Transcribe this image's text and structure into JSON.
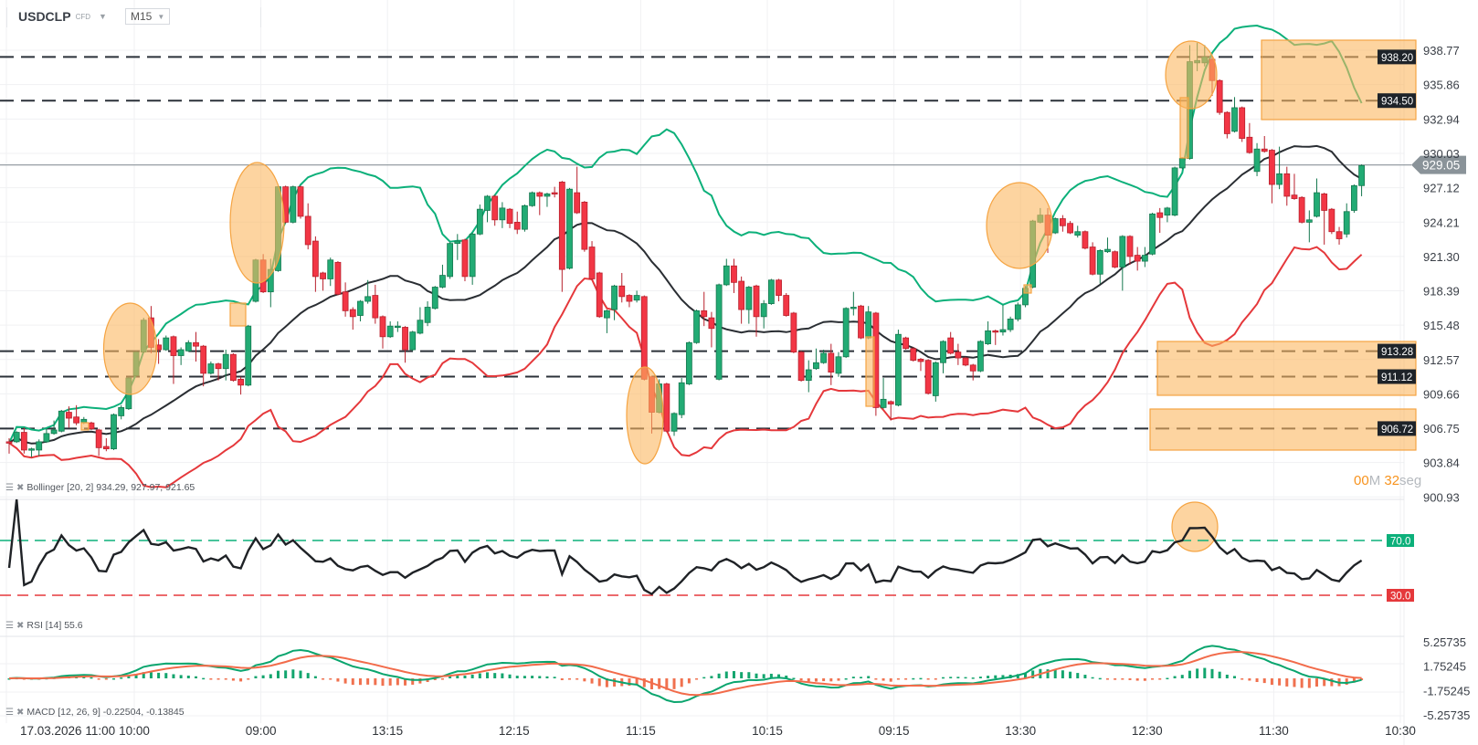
{
  "header": {
    "symbol": "USDCLP",
    "instrument_type": "CFD",
    "timeframe": "M15"
  },
  "countdown": {
    "minutes": "00",
    "minutes_unit": "M",
    "seconds": "32",
    "seconds_unit": "seg"
  },
  "indicators": {
    "bollinger": "Bollinger [20, 2] 934.29, 927.97, 921.65",
    "rsi": "RSI [14] 55.6",
    "macd": "MACD [12, 26, 9] -0.22504, -0.13845"
  },
  "colors": {
    "bull": "#22ab74",
    "bear": "#f23645",
    "bb_upper": "#0cb07a",
    "bb_middle": "#2a2e33",
    "bb_lower": "#e5383b",
    "rsi_line": "#1f2226",
    "macd_line": "#0aa56e",
    "signal_line": "#f26b4a",
    "highlight": "#fcb860",
    "level_line": "#2b3139",
    "last_price": "#8a9399"
  },
  "chart_data": [
    {
      "type": "candlestick",
      "symbol": "USDCLP",
      "timeframe": "M15",
      "price_axis": {
        "ticks": [
          "938.77",
          "935.86",
          "932.94",
          "930.03",
          "927.12",
          "924.21",
          "921.30",
          "918.39",
          "915.48",
          "912.57",
          "909.66",
          "906.75",
          "903.84",
          "900.93"
        ],
        "range": [
          900.93,
          938.77
        ]
      },
      "x_tick_labels": [
        "17.03.2026 11:00",
        "10:00",
        "09:00",
        "13:15",
        "12:15",
        "11:15",
        "10:15",
        "09:15",
        "13:30",
        "12:30",
        "11:30",
        "10:30"
      ],
      "grid": true,
      "last_price": "929.05",
      "horizontal_levels": [
        "938.20",
        "934.50",
        "913.28",
        "911.12",
        "906.72"
      ],
      "ohlc": [
        [
          905.6,
          905.9,
          904.6,
          905.5
        ],
        [
          905.6,
          906.5,
          905.5,
          906.4
        ],
        [
          906.4,
          906.8,
          904.6,
          904.9
        ],
        [
          904.9,
          905.1,
          904.3,
          905.0
        ],
        [
          904.9,
          905.8,
          904.4,
          905.6
        ],
        [
          905.6,
          906.7,
          905.5,
          906.3
        ],
        [
          906.3,
          907.4,
          906.2,
          906.6
        ],
        [
          906.5,
          908.3,
          906.4,
          908.2
        ],
        [
          908.1,
          908.6,
          906.8,
          907.6
        ],
        [
          907.7,
          908.7,
          907.0,
          907.2
        ],
        [
          907.2,
          907.7,
          907.1,
          907.5
        ],
        [
          907.2,
          907.3,
          906.6,
          906.7
        ],
        [
          906.6,
          906.7,
          904.4,
          905.1
        ],
        [
          905.2,
          905.9,
          904.8,
          905.0
        ],
        [
          905.0,
          908.0,
          904.9,
          907.9
        ],
        [
          907.8,
          908.7,
          907.5,
          908.5
        ],
        [
          908.4,
          911.1,
          908.3,
          911.0
        ],
        [
          911.2,
          913.3,
          911.1,
          913.2
        ],
        [
          913.2,
          916.1,
          913.1,
          915.9
        ],
        [
          916.1,
          917.1,
          913.1,
          913.6
        ],
        [
          913.8,
          914.3,
          912.2,
          913.4
        ],
        [
          913.4,
          914.6,
          913.3,
          914.4
        ],
        [
          914.5,
          914.6,
          910.5,
          912.9
        ],
        [
          912.9,
          913.6,
          912.1,
          913.4
        ],
        [
          913.3,
          914.2,
          913.2,
          914.0
        ],
        [
          914.0,
          914.9,
          912.4,
          913.7
        ],
        [
          913.7,
          913.8,
          910.3,
          911.4
        ],
        [
          911.4,
          912.4,
          911.3,
          912.2
        ],
        [
          912.2,
          912.3,
          910.8,
          911.8
        ],
        [
          911.8,
          913.4,
          910.8,
          913.0
        ],
        [
          913.0,
          913.1,
          910.7,
          910.8
        ],
        [
          910.9,
          911.1,
          909.6,
          910.4
        ],
        [
          910.4,
          915.5,
          910.3,
          915.4
        ],
        [
          917.5,
          921.1,
          917.4,
          921.0
        ],
        [
          921.0,
          921.5,
          918.2,
          918.3
        ],
        [
          918.3,
          921.1,
          917.0,
          920.2
        ],
        [
          920.1,
          927.3,
          920.0,
          927.2
        ],
        [
          927.2,
          927.3,
          924.1,
          924.2
        ],
        [
          924.2,
          927.3,
          924.1,
          927.2
        ],
        [
          927.2,
          927.3,
          924.5,
          924.7
        ],
        [
          924.7,
          925.8,
          921.9,
          922.3
        ],
        [
          922.6,
          923.0,
          918.3,
          919.6
        ],
        [
          919.9,
          920.0,
          918.4,
          919.4
        ],
        [
          919.4,
          921.2,
          918.8,
          921.0
        ],
        [
          920.8,
          920.9,
          918.0,
          918.1
        ],
        [
          918.3,
          919.1,
          916.2,
          916.7
        ],
        [
          916.8,
          917.0,
          915.1,
          916.2
        ],
        [
          916.3,
          917.6,
          915.8,
          917.5
        ],
        [
          917.5,
          919.3,
          917.3,
          917.9
        ],
        [
          918.0,
          918.9,
          915.6,
          916.1
        ],
        [
          916.2,
          916.3,
          913.5,
          914.5
        ],
        [
          914.5,
          915.8,
          914.4,
          915.4
        ],
        [
          915.3,
          915.8,
          914.9,
          915.4
        ],
        [
          915.3,
          915.4,
          912.3,
          913.4
        ],
        [
          913.4,
          915.0,
          913.3,
          914.9
        ],
        [
          914.8,
          917.0,
          914.7,
          915.9
        ],
        [
          915.7,
          917.5,
          915.4,
          917.0
        ],
        [
          916.9,
          918.8,
          916.8,
          918.7
        ],
        [
          918.7,
          920.6,
          918.6,
          919.7
        ],
        [
          919.6,
          922.5,
          919.4,
          922.4
        ],
        [
          922.4,
          923.2,
          921.0,
          922.6
        ],
        [
          922.7,
          922.8,
          919.2,
          919.6
        ],
        [
          919.6,
          923.3,
          918.9,
          923.2
        ],
        [
          923.2,
          925.7,
          923.1,
          925.3
        ],
        [
          925.2,
          926.5,
          924.2,
          926.4
        ],
        [
          926.4,
          926.5,
          923.9,
          924.4
        ],
        [
          924.4,
          925.9,
          923.7,
          925.4
        ],
        [
          925.3,
          925.4,
          923.7,
          924.1
        ],
        [
          924.2,
          925.1,
          923.2,
          923.6
        ],
        [
          923.6,
          925.7,
          923.4,
          925.6
        ],
        [
          925.6,
          926.8,
          925.5,
          926.7
        ],
        [
          926.7,
          926.8,
          924.8,
          926.4
        ],
        [
          926.4,
          926.7,
          925.5,
          926.6
        ],
        [
          926.7,
          927.2,
          926.3,
          926.6
        ],
        [
          927.6,
          927.7,
          918.3,
          920.2
        ],
        [
          920.3,
          927.1,
          920.2,
          927.0
        ],
        [
          926.7,
          928.9,
          924.9,
          925.0
        ],
        [
          925.9,
          926.0,
          921.7,
          921.9
        ],
        [
          922.1,
          922.6,
          919.3,
          919.4
        ],
        [
          919.9,
          920.0,
          916.1,
          916.2
        ],
        [
          916.1,
          916.8,
          914.8,
          916.7
        ],
        [
          916.8,
          918.9,
          915.9,
          918.8
        ],
        [
          918.8,
          919.9,
          917.4,
          917.9
        ],
        [
          918.0,
          918.1,
          917.0,
          917.5
        ],
        [
          917.6,
          918.4,
          917.4,
          918.0
        ],
        [
          917.9,
          918.0,
          910.8,
          910.9
        ],
        [
          911.1,
          911.2,
          906.3,
          908.1
        ],
        [
          908.1,
          910.9,
          908.0,
          910.5
        ],
        [
          910.5,
          910.6,
          906.4,
          906.5
        ],
        [
          906.5,
          908.1,
          906.1,
          908.0
        ],
        [
          907.9,
          911.0,
          907.6,
          910.6
        ],
        [
          910.5,
          914.1,
          910.4,
          914.0
        ],
        [
          914.0,
          916.8,
          913.9,
          916.7
        ],
        [
          916.7,
          918.3,
          915.4,
          916.2
        ],
        [
          916.1,
          916.6,
          913.6,
          915.2
        ],
        [
          910.9,
          919.0,
          910.8,
          918.9
        ],
        [
          918.9,
          921.1,
          918.8,
          920.5
        ],
        [
          920.5,
          921.1,
          918.2,
          919.1
        ],
        [
          919.2,
          919.6,
          915.6,
          916.8
        ],
        [
          916.8,
          918.8,
          915.6,
          918.7
        ],
        [
          918.8,
          918.9,
          914.5,
          916.2
        ],
        [
          916.2,
          917.6,
          915.2,
          917.3
        ],
        [
          917.3,
          919.4,
          917.2,
          919.3
        ],
        [
          919.3,
          919.4,
          917.5,
          918.0
        ],
        [
          918.0,
          918.2,
          916.2,
          916.3
        ],
        [
          916.5,
          916.6,
          913.1,
          913.2
        ],
        [
          913.2,
          913.3,
          910.7,
          910.8
        ],
        [
          910.8,
          912.5,
          909.8,
          911.7
        ],
        [
          911.8,
          913.5,
          911.7,
          912.3
        ],
        [
          912.3,
          913.4,
          912.2,
          913.1
        ],
        [
          913.1,
          913.9,
          910.4,
          911.5
        ],
        [
          911.4,
          913.2,
          911.1,
          912.8
        ],
        [
          912.8,
          917.0,
          912.7,
          916.9
        ],
        [
          916.9,
          918.3,
          916.3,
          917.0
        ],
        [
          917.1,
          917.2,
          914.3,
          914.4
        ],
        [
          914.4,
          917.1,
          914.3,
          916.6
        ],
        [
          916.5,
          916.6,
          907.8,
          908.5
        ],
        [
          908.5,
          911.0,
          908.4,
          909.2
        ],
        [
          909.0,
          909.1,
          907.4,
          908.8
        ],
        [
          908.7,
          915.1,
          908.6,
          914.7
        ],
        [
          914.4,
          914.5,
          913.4,
          913.5
        ],
        [
          913.5,
          913.6,
          912.4,
          912.5
        ],
        [
          912.6,
          912.7,
          911.6,
          912.4
        ],
        [
          912.5,
          912.6,
          909.6,
          909.7
        ],
        [
          909.5,
          912.4,
          909.0,
          912.3
        ],
        [
          912.3,
          914.2,
          911.4,
          914.1
        ],
        [
          914.4,
          914.9,
          913.0,
          913.1
        ],
        [
          913.2,
          913.9,
          912.1,
          912.7
        ],
        [
          912.7,
          912.8,
          912.0,
          912.1
        ],
        [
          912.1,
          912.2,
          910.8,
          911.6
        ],
        [
          911.6,
          914.2,
          911.5,
          914.1
        ],
        [
          913.9,
          915.8,
          913.8,
          915.0
        ],
        [
          915.0,
          915.1,
          913.8,
          914.9
        ],
        [
          914.9,
          917.2,
          914.6,
          915.1
        ],
        [
          915.1,
          916.2,
          914.9,
          916.0
        ],
        [
          916.0,
          917.4,
          915.8,
          917.2
        ],
        [
          917.2,
          918.8,
          917.0,
          918.6
        ],
        [
          918.7,
          924.4,
          918.6,
          924.3
        ],
        [
          924.2,
          925.4,
          924.1,
          924.8
        ],
        [
          924.8,
          925.4,
          921.6,
          923.1
        ],
        [
          923.3,
          924.6,
          923.2,
          924.5
        ],
        [
          924.5,
          924.8,
          923.4,
          923.9
        ],
        [
          924.1,
          924.3,
          923.2,
          923.3
        ],
        [
          923.1,
          923.9,
          922.9,
          923.4
        ],
        [
          923.4,
          923.5,
          921.9,
          922.0
        ],
        [
          922.1,
          922.5,
          919.7,
          919.8
        ],
        [
          919.8,
          921.9,
          919.0,
          921.8
        ],
        [
          921.7,
          922.9,
          921.6,
          921.9
        ],
        [
          921.7,
          921.8,
          920.3,
          920.4
        ],
        [
          920.4,
          923.1,
          918.4,
          923.0
        ],
        [
          923.0,
          923.1,
          920.6,
          921.3
        ],
        [
          921.4,
          922.1,
          920.1,
          920.9
        ],
        [
          920.9,
          922.1,
          920.4,
          921.4
        ],
        [
          921.5,
          925.0,
          921.4,
          924.9
        ],
        [
          925.0,
          925.4,
          923.3,
          924.6
        ],
        [
          924.8,
          925.5,
          924.2,
          925.4
        ],
        [
          924.8,
          928.9,
          924.7,
          928.8
        ],
        [
          928.8,
          929.7,
          928.7,
          929.6
        ],
        [
          929.6,
          939.2,
          929.5,
          937.8
        ],
        [
          937.7,
          939.4,
          937.0,
          937.9
        ],
        [
          937.7,
          939.2,
          937.4,
          938.2
        ],
        [
          938.0,
          938.3,
          934.9,
          936.2
        ],
        [
          936.2,
          936.3,
          933.3,
          933.5
        ],
        [
          933.5,
          933.6,
          931.3,
          931.7
        ],
        [
          931.9,
          934.8,
          931.8,
          933.9
        ],
        [
          933.9,
          934.0,
          931.0,
          931.3
        ],
        [
          931.4,
          932.6,
          930.0,
          930.1
        ],
        [
          928.5,
          930.9,
          928.1,
          930.4
        ],
        [
          930.4,
          931.5,
          930.1,
          930.2
        ],
        [
          930.3,
          930.4,
          925.8,
          927.4
        ],
        [
          927.4,
          930.6,
          927.0,
          928.3
        ],
        [
          928.3,
          928.9,
          925.6,
          926.4
        ],
        [
          926.5,
          928.3,
          926.1,
          926.2
        ],
        [
          926.3,
          926.4,
          924.1,
          924.2
        ],
        [
          924.2,
          925.2,
          922.5,
          924.4
        ],
        [
          924.7,
          927.9,
          924.6,
          926.7
        ],
        [
          926.6,
          926.7,
          922.3,
          925.2
        ],
        [
          925.3,
          925.4,
          923.2,
          923.4
        ],
        [
          923.4,
          923.8,
          922.3,
          922.8
        ],
        [
          923.2,
          925.8,
          922.9,
          925.1
        ],
        [
          925.2,
          927.4,
          925.0,
          927.3
        ],
        [
          927.3,
          929.1,
          926.4,
          929.0
        ]
      ],
      "overlay": "Bollinger Bands (20, 2)"
    },
    {
      "type": "line",
      "indicator": "RSI 14",
      "levels": [
        "70.0",
        "30.0"
      ],
      "current": 55.6
    },
    {
      "type": "bar",
      "indicator": "MACD 12 26 9",
      "ticks": [
        "5.25735",
        "1.75245",
        "-1.75245",
        "-5.25735"
      ],
      "macd": -0.22504,
      "signal": -0.13845
    }
  ]
}
